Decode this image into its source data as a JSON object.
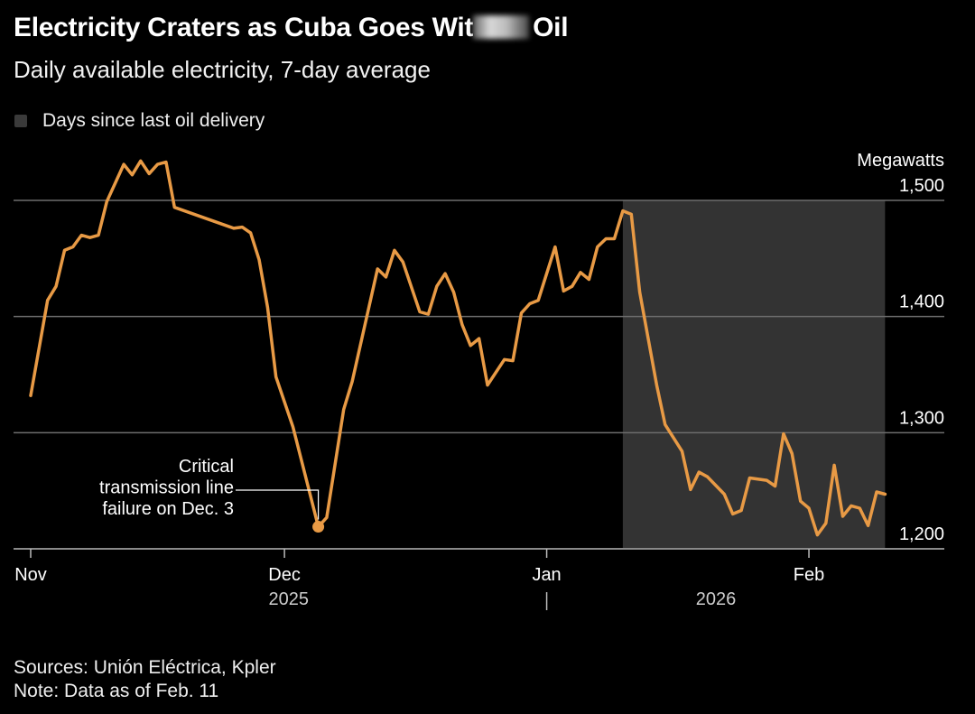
{
  "header": {
    "title_visible_start": "Electricity Craters as Cuba Goes Wit",
    "title_visible_end": "Oil",
    "subtitle": "Daily available electricity, 7-day average"
  },
  "legend": {
    "label": "Days since last oil delivery",
    "swatch_color": "#3a3a3a"
  },
  "footer": {
    "sources": "Sources: Unión Eléctrica, Kpler",
    "note": "Note: Data as of Feb. 11"
  },
  "colors": {
    "background": "#000000",
    "line": "#e89a45",
    "shade": "#333333",
    "grid": "#6e6e6e"
  },
  "chart_data": {
    "type": "line",
    "title": "Electricity Craters as Cuba Goes Without Oil",
    "subtitle": "Daily available electricity, 7-day average",
    "ylabel": "Megawatts",
    "xlabel": "",
    "ylim": [
      1200,
      1500
    ],
    "yticks": [
      {
        "value": 1500,
        "label": "1,500"
      },
      {
        "value": 1400,
        "label": "1,400"
      },
      {
        "value": 1300,
        "label": "1,300"
      },
      {
        "value": 1200,
        "label": "1,200"
      }
    ],
    "x_start_date": "2025-11-01",
    "x_end_day": 101,
    "xticks": [
      {
        "day": 0,
        "label": "Nov"
      },
      {
        "day": 30,
        "label": "Dec"
      },
      {
        "day": 61,
        "label": "Jan"
      },
      {
        "day": 92,
        "label": "Feb"
      }
    ],
    "years": [
      {
        "day": 30.5,
        "label": "2025"
      },
      {
        "day": 81,
        "label": "2026"
      }
    ],
    "year_divider_day": 61,
    "grid": true,
    "legend_position": "top-left",
    "shaded_range": {
      "label": "Days since last oil delivery",
      "start_day": 70,
      "end_day": 101
    },
    "series": [
      {
        "name": "Daily available electricity (7-day avg, MW)",
        "points": [
          {
            "day": 0,
            "date": "Nov 1",
            "value": 1332
          },
          {
            "day": 2,
            "date": "Nov 3",
            "value": 1414
          },
          {
            "day": 3,
            "date": "Nov 4",
            "value": 1426
          },
          {
            "day": 4,
            "date": "Nov 5",
            "value": 1457
          },
          {
            "day": 5,
            "date": "Nov 6",
            "value": 1460
          },
          {
            "day": 6,
            "date": "Nov 7",
            "value": 1470
          },
          {
            "day": 7,
            "date": "Nov 8",
            "value": 1468
          },
          {
            "day": 8,
            "date": "Nov 9",
            "value": 1470
          },
          {
            "day": 9,
            "date": "Nov 10",
            "value": 1499
          },
          {
            "day": 11,
            "date": "Nov 12",
            "value": 1531
          },
          {
            "day": 12,
            "date": "Nov 13",
            "value": 1522
          },
          {
            "day": 13,
            "date": "Nov 14",
            "value": 1534
          },
          {
            "day": 14,
            "date": "Nov 15",
            "value": 1523
          },
          {
            "day": 15,
            "date": "Nov 16",
            "value": 1531
          },
          {
            "day": 16,
            "date": "Nov 17",
            "value": 1533
          },
          {
            "day": 17,
            "date": "Nov 18",
            "value": 1494
          },
          {
            "day": 24,
            "date": "Nov 25",
            "value": 1476
          },
          {
            "day": 25,
            "date": "Nov 26",
            "value": 1477
          },
          {
            "day": 26,
            "date": "Nov 27",
            "value": 1472
          },
          {
            "day": 27,
            "date": "Nov 28",
            "value": 1449
          },
          {
            "day": 28,
            "date": "Nov 29",
            "value": 1408
          },
          {
            "day": 29,
            "date": "Nov 30",
            "value": 1348
          },
          {
            "day": 31,
            "date": "Dec 2",
            "value": 1305
          },
          {
            "day": 34,
            "date": "Dec 5",
            "value": 1219
          },
          {
            "day": 35,
            "date": "Dec 6",
            "value": 1227
          },
          {
            "day": 37,
            "date": "Dec 8",
            "value": 1320
          },
          {
            "day": 38,
            "date": "Dec 9",
            "value": 1344
          },
          {
            "day": 41,
            "date": "Dec 12",
            "value": 1441
          },
          {
            "day": 42,
            "date": "Dec 13",
            "value": 1434
          },
          {
            "day": 43,
            "date": "Dec 14",
            "value": 1457
          },
          {
            "day": 44,
            "date": "Dec 15",
            "value": 1447
          },
          {
            "day": 46,
            "date": "Dec 17",
            "value": 1404
          },
          {
            "day": 47,
            "date": "Dec 18",
            "value": 1402
          },
          {
            "day": 48,
            "date": "Dec 19",
            "value": 1426
          },
          {
            "day": 49,
            "date": "Dec 20",
            "value": 1437
          },
          {
            "day": 50,
            "date": "Dec 21",
            "value": 1421
          },
          {
            "day": 51,
            "date": "Dec 22",
            "value": 1393
          },
          {
            "day": 52,
            "date": "Dec 23",
            "value": 1375
          },
          {
            "day": 53,
            "date": "Dec 24",
            "value": 1381
          },
          {
            "day": 54,
            "date": "Dec 25",
            "value": 1341
          },
          {
            "day": 56,
            "date": "Dec 27",
            "value": 1363
          },
          {
            "day": 57,
            "date": "Dec 28",
            "value": 1362
          },
          {
            "day": 58,
            "date": "Dec 29",
            "value": 1403
          },
          {
            "day": 59,
            "date": "Dec 30",
            "value": 1411
          },
          {
            "day": 60,
            "date": "Dec 31",
            "value": 1414
          },
          {
            "day": 62,
            "date": "Jan 2",
            "value": 1460
          },
          {
            "day": 63,
            "date": "Jan 3",
            "value": 1422
          },
          {
            "day": 64,
            "date": "Jan 4",
            "value": 1426
          },
          {
            "day": 65,
            "date": "Jan 5",
            "value": 1438
          },
          {
            "day": 66,
            "date": "Jan 6",
            "value": 1432
          },
          {
            "day": 67,
            "date": "Jan 7",
            "value": 1460
          },
          {
            "day": 68,
            "date": "Jan 8",
            "value": 1467
          },
          {
            "day": 69,
            "date": "Jan 9",
            "value": 1467
          },
          {
            "day": 70,
            "date": "Jan 10",
            "value": 1491
          },
          {
            "day": 71,
            "date": "Jan 11",
            "value": 1488
          },
          {
            "day": 72,
            "date": "Jan 12",
            "value": 1421
          },
          {
            "day": 74,
            "date": "Jan 14",
            "value": 1341
          },
          {
            "day": 75,
            "date": "Jan 15",
            "value": 1307
          },
          {
            "day": 77,
            "date": "Jan 17",
            "value": 1284
          },
          {
            "day": 78,
            "date": "Jan 18",
            "value": 1251
          },
          {
            "day": 79,
            "date": "Jan 19",
            "value": 1266
          },
          {
            "day": 80,
            "date": "Jan 20",
            "value": 1262
          },
          {
            "day": 82,
            "date": "Jan 22",
            "value": 1247
          },
          {
            "day": 83,
            "date": "Jan 23",
            "value": 1230
          },
          {
            "day": 84,
            "date": "Jan 24",
            "value": 1233
          },
          {
            "day": 85,
            "date": "Jan 25",
            "value": 1261
          },
          {
            "day": 87,
            "date": "Jan 27",
            "value": 1259
          },
          {
            "day": 88,
            "date": "Jan 28",
            "value": 1254
          },
          {
            "day": 89,
            "date": "Jan 29",
            "value": 1299
          },
          {
            "day": 90,
            "date": "Jan 30",
            "value": 1282
          },
          {
            "day": 91,
            "date": "Jan 31",
            "value": 1241
          },
          {
            "day": 92,
            "date": "Feb 1",
            "value": 1235
          },
          {
            "day": 93,
            "date": "Feb 2",
            "value": 1212
          },
          {
            "day": 94,
            "date": "Feb 3",
            "value": 1222
          },
          {
            "day": 95,
            "date": "Feb 4",
            "value": 1272
          },
          {
            "day": 96,
            "date": "Feb 5",
            "value": 1228
          },
          {
            "day": 97,
            "date": "Feb 6",
            "value": 1237
          },
          {
            "day": 98,
            "date": "Feb 7",
            "value": 1235
          },
          {
            "day": 99,
            "date": "Feb 8",
            "value": 1220
          },
          {
            "day": 100,
            "date": "Feb 9",
            "value": 1249
          },
          {
            "day": 101,
            "date": "Feb 10",
            "value": 1247
          }
        ]
      }
    ],
    "annotations": [
      {
        "lines": [
          "Critical",
          "transmission line",
          "failure on Dec. 3"
        ],
        "day": 34,
        "value": 1219
      }
    ]
  }
}
